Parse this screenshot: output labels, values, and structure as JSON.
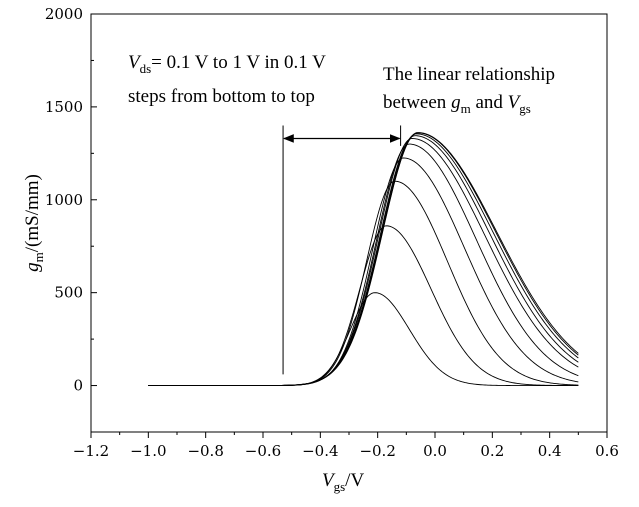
{
  "chart_data": {
    "type": "line",
    "title": "",
    "xlabel": {
      "main": "V",
      "sub": "gs",
      "suffix": "/V"
    },
    "ylabel": {
      "main": "g",
      "sub": "m",
      "suffix": "/(mS/mm)"
    },
    "xlim": [
      -1.2,
      0.6
    ],
    "ylim": [
      -250,
      2000
    ],
    "xticks": [
      -1.2,
      -1.0,
      -0.8,
      -0.6,
      -0.4,
      -0.2,
      0.0,
      0.2,
      0.4,
      0.6
    ],
    "xtick_labels": [
      "−1.2",
      "−1.0",
      "−0.8",
      "−0.6",
      "−0.4",
      "−0.2",
      "0.0",
      "0.2",
      "0.4",
      "0.6"
    ],
    "yticks": [
      0,
      500,
      1000,
      1500,
      2000
    ],
    "ytick_labels": [
      "0",
      "500",
      "1000",
      "1500",
      "2000"
    ],
    "grid": false,
    "legend": "none",
    "line_color": "#000000",
    "series": [
      {
        "vds": 0.1,
        "peak_x": -0.21,
        "peak_y": 500,
        "left_width": 0.12,
        "right_width": 0.17
      },
      {
        "vds": 0.2,
        "peak_x": -0.17,
        "peak_y": 860,
        "left_width": 0.13,
        "right_width": 0.22
      },
      {
        "vds": 0.3,
        "peak_x": -0.14,
        "peak_y": 1100,
        "left_width": 0.14,
        "right_width": 0.26
      },
      {
        "vds": 0.4,
        "peak_x": -0.11,
        "peak_y": 1225,
        "left_width": 0.15,
        "right_width": 0.3
      },
      {
        "vds": 0.5,
        "peak_x": -0.09,
        "peak_y": 1300,
        "left_width": 0.16,
        "right_width": 0.33
      },
      {
        "vds": 0.6,
        "peak_x": -0.08,
        "peak_y": 1330,
        "left_width": 0.165,
        "right_width": 0.36
      },
      {
        "vds": 0.7,
        "peak_x": -0.07,
        "peak_y": 1345,
        "left_width": 0.17,
        "right_width": 0.37
      },
      {
        "vds": 0.8,
        "peak_x": -0.065,
        "peak_y": 1355,
        "left_width": 0.172,
        "right_width": 0.38
      },
      {
        "vds": 0.9,
        "peak_x": -0.06,
        "peak_y": 1360,
        "left_width": 0.174,
        "right_width": 0.385
      },
      {
        "vds": 1.0,
        "peak_x": -0.06,
        "peak_y": 1362,
        "left_width": 0.175,
        "right_width": 0.39
      }
    ],
    "annotations": {
      "vds_note": {
        "line1_main": "V",
        "line1_sub": "ds",
        "line1_rest": "= 0.1 V to 1 V in 0.1 V",
        "line2": "steps from bottom to top"
      },
      "linear_note": {
        "line1": "The linear relationship",
        "line2_pre": "between ",
        "line2_g": "g",
        "line2_gsub": "m",
        "line2_and": " and ",
        "line2_v": "V",
        "line2_vsub": "gs"
      },
      "linear_range": {
        "x_start": -0.53,
        "x_end": -0.12,
        "arrow_y": 1330
      }
    }
  }
}
